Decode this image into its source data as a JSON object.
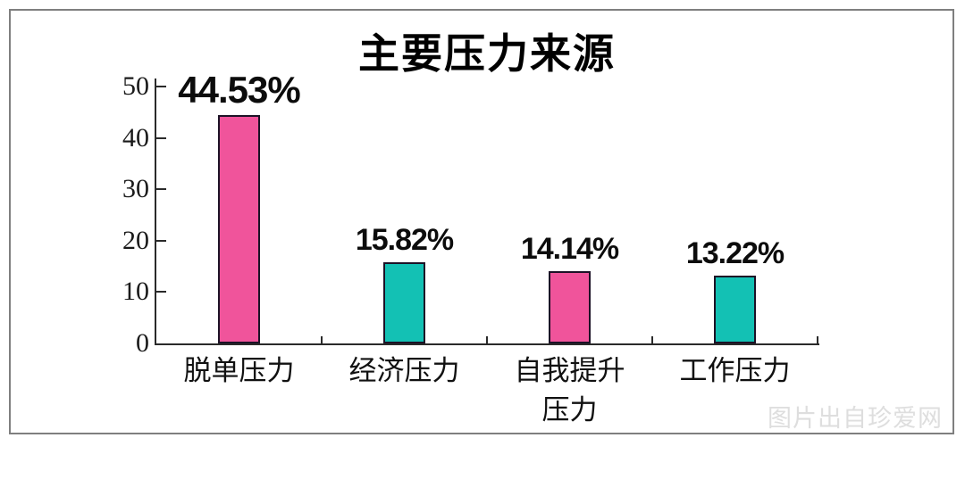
{
  "page": {
    "watermark": "图片出自珍爱网"
  },
  "chart_data": {
    "type": "bar",
    "title": "主要压力来源",
    "categories": [
      "脱单压力",
      "经济压力",
      "自我提升\n压力",
      "工作压力"
    ],
    "values": [
      44.53,
      15.82,
      14.14,
      13.22
    ],
    "value_labels": [
      "44.53%",
      "15.82%",
      "14.14%",
      "13.22%"
    ],
    "bar_colors": [
      "#f0549b",
      "#13c1b4",
      "#f0549b",
      "#13c1b4"
    ],
    "bar_border_color": "#1c1226",
    "y_ticks": [
      0,
      10,
      20,
      30,
      40,
      50
    ],
    "ylim": [
      0,
      50
    ],
    "xlabel": "",
    "ylabel": "",
    "grid": false,
    "legend": false
  }
}
